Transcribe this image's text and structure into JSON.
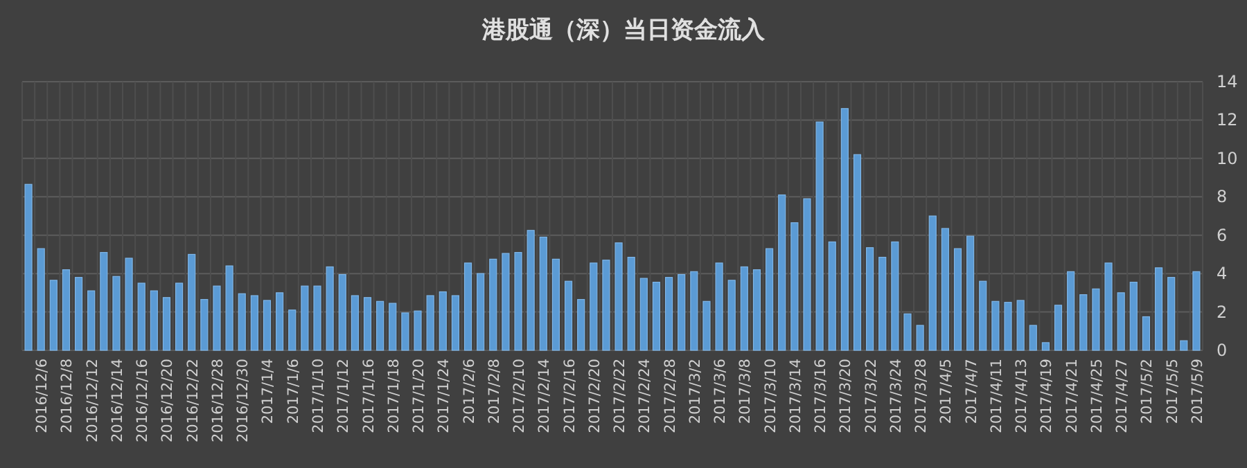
{
  "chart_data": {
    "type": "bar",
    "title": "港股通（深）当日资金流入",
    "categories": [
      null,
      "2016/12/6",
      null,
      "2016/12/8",
      null,
      "2016/12/12",
      null,
      "2016/12/14",
      null,
      "2016/12/16",
      null,
      "2016/12/20",
      null,
      "2016/12/22",
      null,
      "2016/12/28",
      null,
      "2016/12/30",
      null,
      "2017/1/4",
      null,
      "2017/1/6",
      null,
      "2017/1/10",
      null,
      "2017/1/12",
      null,
      "2017/1/16",
      null,
      "2017/1/18",
      null,
      "2017/1/20",
      null,
      "2017/1/24",
      null,
      "2017/2/6",
      null,
      "2017/2/8",
      null,
      "2017/2/10",
      null,
      "2017/2/14",
      null,
      "2017/2/16",
      null,
      "2017/2/20",
      null,
      "2017/2/22",
      null,
      "2017/2/24",
      null,
      "2017/2/28",
      null,
      "2017/3/2",
      null,
      "2017/3/6",
      null,
      "2017/3/8",
      null,
      "2017/3/10",
      null,
      "2017/3/14",
      null,
      "2017/3/16",
      null,
      "2017/3/20",
      null,
      "2017/3/22",
      null,
      "2017/3/24",
      null,
      "2017/3/28",
      null,
      "2017/4/5",
      null,
      "2017/4/7",
      null,
      "2017/4/11",
      null,
      "2017/4/13",
      null,
      "2017/4/19",
      null,
      "2017/4/21",
      null,
      "2017/4/25",
      null,
      "2017/4/27",
      null,
      "2017/5/2",
      null,
      "2017/5/5",
      null,
      "2017/5/9"
    ],
    "values": [
      8.65,
      5.3,
      3.65,
      4.2,
      3.8,
      3.1,
      5.1,
      3.85,
      4.8,
      3.5,
      3.1,
      2.75,
      3.5,
      5.0,
      2.65,
      3.35,
      4.4,
      2.95,
      2.85,
      2.6,
      3.0,
      2.1,
      3.35,
      3.35,
      4.35,
      3.95,
      2.85,
      2.75,
      2.55,
      2.45,
      1.95,
      2.05,
      2.85,
      3.05,
      2.85,
      4.55,
      4.0,
      4.75,
      5.05,
      5.1,
      6.25,
      5.9,
      4.75,
      3.6,
      2.65,
      4.55,
      4.7,
      5.6,
      4.85,
      3.75,
      3.55,
      3.8,
      3.95,
      4.1,
      2.55,
      4.55,
      3.65,
      4.35,
      4.2,
      5.3,
      8.1,
      6.65,
      7.9,
      11.9,
      5.65,
      12.6,
      10.2,
      5.35,
      4.85,
      5.65,
      1.9,
      1.3,
      7.0,
      6.35,
      5.3,
      5.95,
      3.6,
      2.55,
      2.5,
      2.6,
      1.3,
      0.4,
      2.35,
      4.1,
      2.9,
      3.2,
      4.55,
      3.0,
      3.55,
      1.75,
      4.3,
      3.8,
      0.5,
      4.1
    ],
    "color": "#5b9bd5",
    "ylim": [
      0,
      14
    ],
    "yticks": [
      0,
      2,
      4,
      6,
      8,
      10,
      12,
      14
    ],
    "grid": true
  }
}
